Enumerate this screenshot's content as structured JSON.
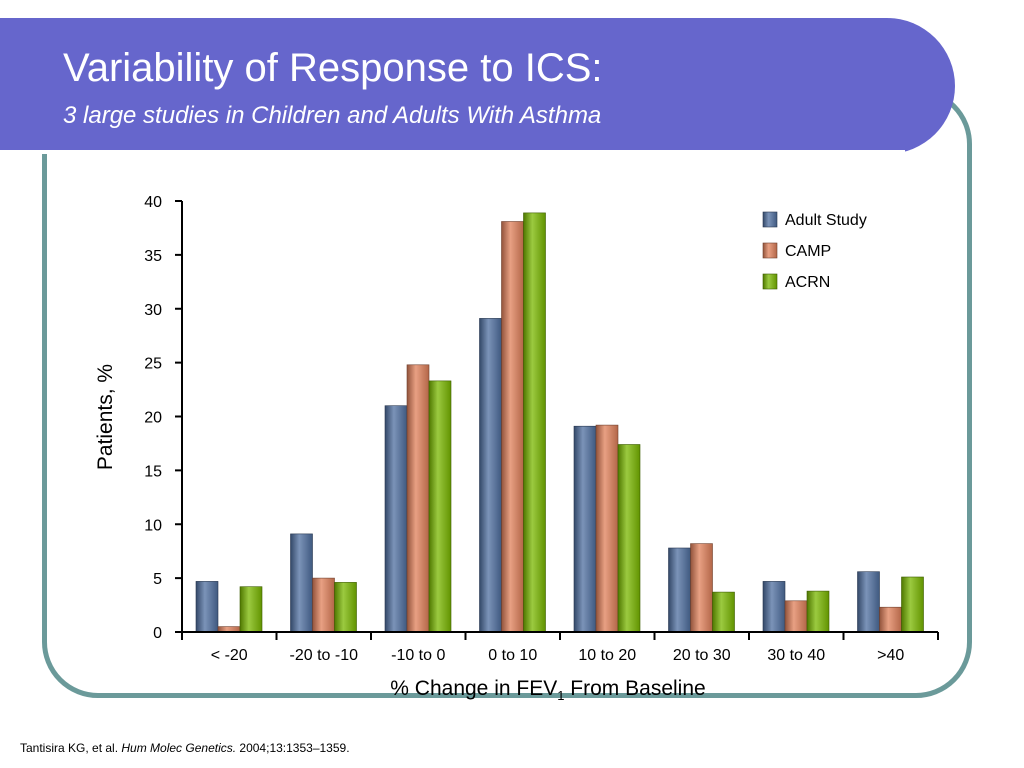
{
  "slide": {
    "title": "Variability of Response to ICS:",
    "subtitle": "3 large studies in Children and Adults With Asthma"
  },
  "citation": {
    "authors": "Tantisira KG, et al. ",
    "journal": "Hum Molec Genetics.",
    "details": " 2004;13:1353–1359."
  },
  "colors": {
    "title_bar": "#6666cc",
    "frame": "#6b9a9a"
  },
  "chart_data": {
    "type": "bar",
    "title": "",
    "xlabel_main": "% Change in FEV",
    "xlabel_sub": "1",
    "xlabel_tail": " From Baseline",
    "ylabel": "Patients, %",
    "ylim": [
      0,
      40
    ],
    "yticks": [
      "0",
      "5",
      "10",
      "15",
      "20",
      "25",
      "30",
      "35",
      "40"
    ],
    "grid": false,
    "legend_position": "top-right",
    "categories": [
      "< -20",
      "-20 to -10",
      "-10 to 0",
      "0 to 10",
      "10 to 20",
      "20 to 30",
      "30 to 40",
      ">40"
    ],
    "series": [
      {
        "name": "Adult Study",
        "color": "#4f6fa0",
        "values": [
          4.7,
          9.1,
          21.0,
          29.1,
          19.1,
          7.8,
          4.7,
          5.6
        ]
      },
      {
        "name": "CAMP",
        "color": "#e0805a",
        "values": [
          0.5,
          5.0,
          24.8,
          38.1,
          19.2,
          8.2,
          2.9,
          2.3
        ]
      },
      {
        "name": "ACRN",
        "color": "#7ab800",
        "values": [
          4.2,
          4.6,
          23.3,
          38.9,
          17.4,
          3.7,
          3.8,
          5.1
        ]
      }
    ]
  }
}
